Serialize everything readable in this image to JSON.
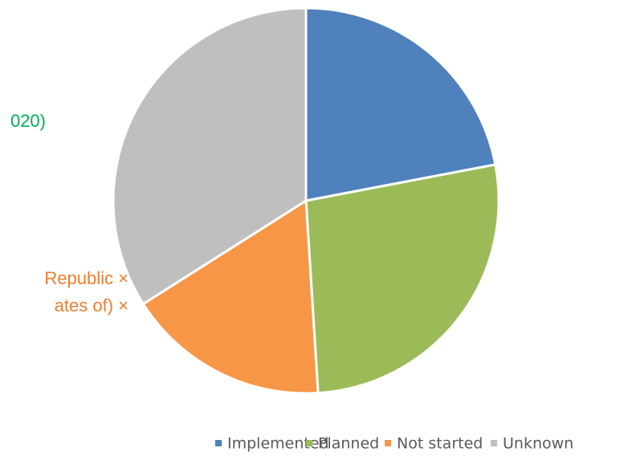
{
  "chart_data": {
    "type": "pie",
    "categories": [
      "Implemented",
      "Planned",
      "Not started",
      "Unknown"
    ],
    "values": [
      22,
      27,
      17,
      34
    ],
    "colors": [
      "#4f81bd",
      "#9bbb59",
      "#f79646",
      "#bfbfbf"
    ],
    "legend": "bottom",
    "annotations": [
      {
        "text": "020)",
        "color": "#00b050"
      },
      {
        "text": "Republic ×",
        "color": "#ed7d31"
      },
      {
        "text": "ates of) ×",
        "color": "#ed7d31"
      }
    ]
  }
}
